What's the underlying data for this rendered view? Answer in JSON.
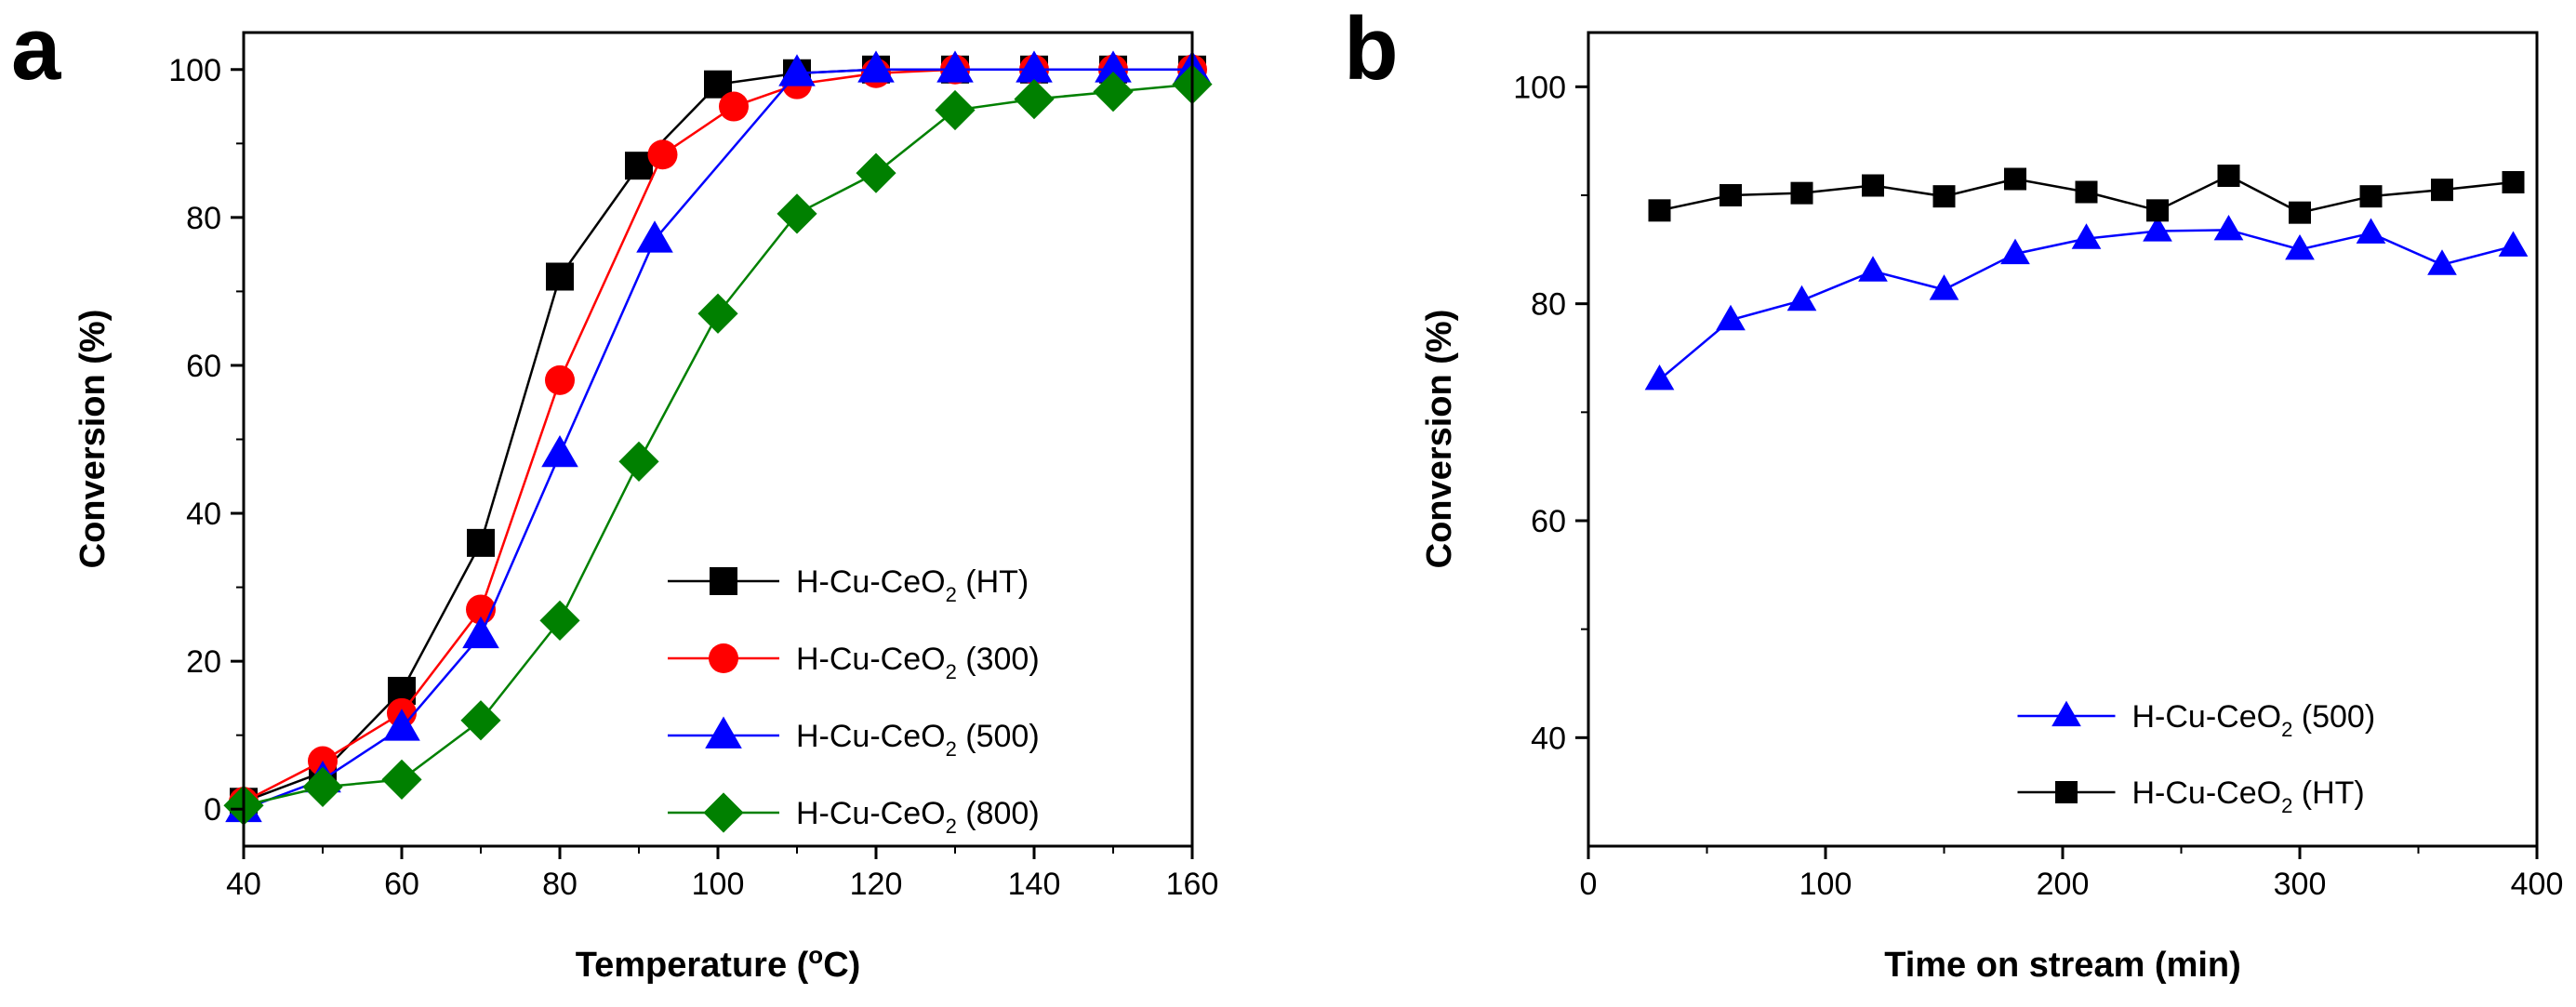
{
  "chart_data": [
    {
      "panel_label": "a",
      "type": "line",
      "xlabel": "Temperature (°C)",
      "xlabel_parts": {
        "pre": "Temperature (",
        "sup": "o",
        "post": "C)"
      },
      "ylabel": "Conversion (%)",
      "xlim": [
        40,
        160
      ],
      "ylim": [
        -5,
        105
      ],
      "xticks": [
        40,
        60,
        80,
        100,
        120,
        140,
        160
      ],
      "yticks": [
        0,
        20,
        40,
        60,
        80,
        100
      ],
      "grid": false,
      "legend_position": "bottom-right",
      "series": [
        {
          "name": "H-Cu-CeO2 (HT)",
          "label_main": "H-Cu-CeO",
          "label_sub": "2",
          "label_tail": " (HT)",
          "marker": "square",
          "color": "#000000",
          "x": [
            40,
            50,
            60,
            70,
            80,
            90,
            100,
            110,
            120,
            130,
            140,
            150,
            160
          ],
          "y": [
            1,
            5,
            16,
            36,
            72,
            87,
            98,
            99.5,
            100,
            100,
            100,
            100,
            100
          ]
        },
        {
          "name": "H-Cu-CeO2 (300)",
          "label_main": "H-Cu-CeO",
          "label_sub": "2",
          "label_tail": " (300)",
          "marker": "circle",
          "color": "#ff0000",
          "x": [
            40,
            50,
            60,
            70,
            80,
            93,
            102,
            110,
            120,
            130,
            140,
            150,
            160
          ],
          "y": [
            1,
            6.5,
            13,
            27,
            58,
            88.5,
            95,
            98,
            99.5,
            100,
            100,
            100,
            100
          ]
        },
        {
          "name": "H-Cu-CeO2 (500)",
          "label_main": "H-Cu-CeO",
          "label_sub": "2",
          "label_tail": " (500)",
          "marker": "triangle",
          "color": "#0000ff",
          "x": [
            40,
            50,
            60,
            70,
            80,
            92,
            110,
            120,
            130,
            140,
            150,
            160
          ],
          "y": [
            0,
            4,
            11,
            23.5,
            48,
            77,
            99.5,
            100,
            100,
            100,
            100,
            100
          ]
        },
        {
          "name": "H-Cu-CeO2 (800)",
          "label_main": "H-Cu-CeO",
          "label_sub": "2",
          "label_tail": " (800)",
          "marker": "diamond",
          "color": "#008000",
          "x": [
            40,
            50,
            60,
            70,
            80,
            90,
            100,
            110,
            120,
            130,
            140,
            150,
            160
          ],
          "y": [
            0.5,
            3,
            4,
            12,
            25.5,
            47,
            67,
            80.5,
            86,
            94.5,
            96,
            97,
            98
          ]
        }
      ]
    },
    {
      "panel_label": "b",
      "type": "line",
      "xlabel": "Time on stream (min)",
      "ylabel": "Conversion (%)",
      "xlim": [
        0,
        400
      ],
      "ylim": [
        30,
        105
      ],
      "xticks": [
        0,
        100,
        200,
        300,
        400
      ],
      "yticks": [
        40,
        60,
        80,
        100
      ],
      "grid": false,
      "legend_position": "bottom-right",
      "series": [
        {
          "name": "H-Cu-CeO2 (500)",
          "label_main": "H-Cu-CeO",
          "label_sub": "2",
          "label_tail": " (500)",
          "marker": "triangle",
          "color": "#0000ff",
          "x": [
            30,
            60,
            90,
            120,
            150,
            180,
            210,
            240,
            270,
            300,
            330,
            360,
            390
          ],
          "y": [
            73,
            78.5,
            80.3,
            83,
            81.3,
            84.6,
            86,
            86.7,
            86.8,
            85,
            86.5,
            83.6,
            85.3
          ]
        },
        {
          "name": "H-Cu-CeO2 (HT)",
          "label_main": "H-Cu-CeO",
          "label_sub": "2",
          "label_tail": " (HT)",
          "marker": "square",
          "color": "#000000",
          "x": [
            30,
            60,
            90,
            120,
            150,
            180,
            210,
            240,
            270,
            300,
            330,
            360,
            390
          ],
          "y": [
            88.6,
            90,
            90.2,
            90.9,
            89.9,
            91.5,
            90.3,
            88.6,
            91.8,
            88.4,
            89.9,
            90.5,
            91.2
          ]
        }
      ]
    }
  ]
}
